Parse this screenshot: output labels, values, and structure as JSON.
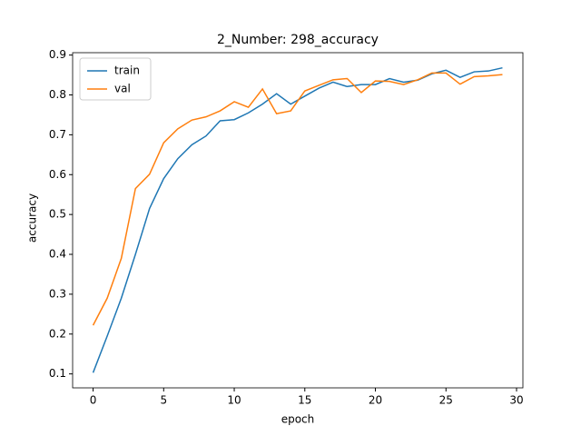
{
  "chart_data": {
    "type": "line",
    "title": "2_Number: 298_accuracy",
    "x_label": "epoch",
    "y_label": "accuracy",
    "x": [
      0,
      1,
      2,
      3,
      4,
      5,
      6,
      7,
      8,
      9,
      10,
      11,
      12,
      13,
      14,
      15,
      16,
      17,
      18,
      19,
      20,
      21,
      22,
      23,
      24,
      25,
      26,
      27,
      28,
      29
    ],
    "series": [
      {
        "name": "train",
        "color": "#1f77b4",
        "values": [
          0.103,
          0.195,
          0.29,
          0.4,
          0.515,
          0.59,
          0.64,
          0.675,
          0.697,
          0.735,
          0.738,
          0.755,
          0.777,
          0.803,
          0.777,
          0.797,
          0.817,
          0.832,
          0.821,
          0.826,
          0.826,
          0.841,
          0.832,
          0.837,
          0.853,
          0.862,
          0.844,
          0.858,
          0.86,
          0.868
        ]
      },
      {
        "name": "val",
        "color": "#ff7f0e",
        "values": [
          0.222,
          0.29,
          0.39,
          0.565,
          0.601,
          0.68,
          0.715,
          0.737,
          0.745,
          0.76,
          0.783,
          0.769,
          0.815,
          0.753,
          0.76,
          0.81,
          0.824,
          0.838,
          0.841,
          0.806,
          0.835,
          0.834,
          0.826,
          0.838,
          0.855,
          0.855,
          0.827,
          0.846,
          0.848,
          0.851
        ]
      }
    ],
    "xlim": [
      -1.45,
      30.45
    ],
    "ylim": [
      0.065,
      0.906
    ],
    "xticks": [
      0,
      5,
      10,
      15,
      20,
      25,
      30
    ],
    "yticks": [
      0.1,
      0.2,
      0.3,
      0.4,
      0.5,
      0.6,
      0.7,
      0.8,
      0.9
    ],
    "legend": "upper left"
  }
}
